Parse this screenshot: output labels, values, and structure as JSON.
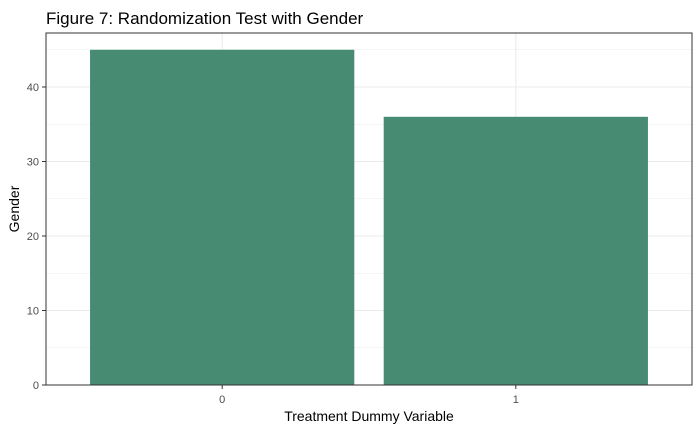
{
  "chart_data": {
    "type": "bar",
    "title": "Figure 7: Randomization Test with Gender",
    "xlabel": "Treatment Dummy Variable",
    "ylabel": "Gender",
    "categories": [
      "0",
      "1"
    ],
    "values": [
      45,
      36
    ],
    "ylim": [
      0,
      47.25
    ],
    "yticks": [
      0,
      10,
      20,
      30,
      40
    ],
    "grid": true,
    "legend": "none",
    "bar_color": "#478b73",
    "grid_color": "#ebebeb",
    "border_color": "#333333"
  }
}
